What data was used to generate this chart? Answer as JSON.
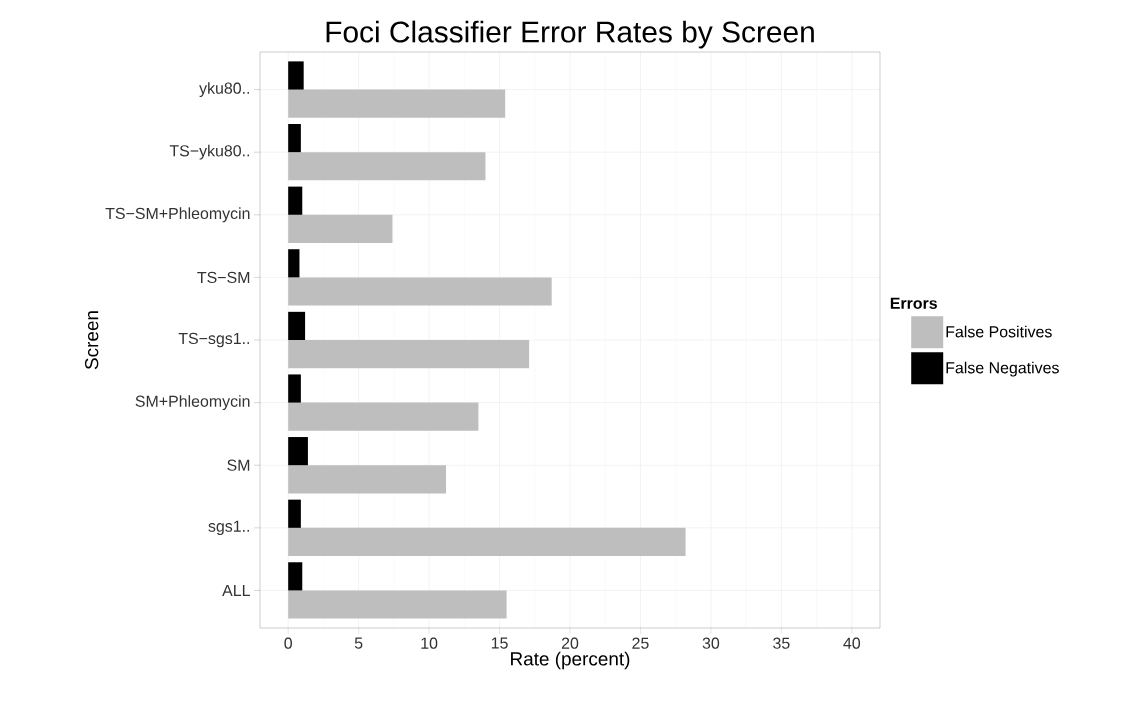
{
  "chart_data": {
    "type": "bar",
    "orientation": "horizontal",
    "title": "Foci Classifier Error Rates by Screen",
    "xlabel": "Rate (percent)",
    "ylabel": "Screen",
    "legend_title": "Errors",
    "categories": [
      "yku80..",
      "TS−yku80..",
      "TS−SM+Phleomycin",
      "TS−SM",
      "TS−sgs1..",
      "SM+Phleomycin",
      "SM",
      "sgs1..",
      "ALL"
    ],
    "series": [
      {
        "name": "False Positives",
        "color": "#bebebe",
        "values": [
          15.4,
          14.0,
          7.4,
          18.7,
          17.1,
          13.5,
          11.2,
          28.2,
          15.5
        ]
      },
      {
        "name": "False Negatives",
        "color": "#000000",
        "values": [
          1.1,
          0.9,
          1.0,
          0.8,
          1.2,
          0.9,
          1.4,
          0.9,
          1.0
        ]
      }
    ],
    "xlim": [
      -2,
      42
    ],
    "xticks": [
      0,
      5,
      10,
      15,
      20,
      25,
      30,
      35,
      40
    ],
    "grid": true,
    "legend": "right"
  }
}
